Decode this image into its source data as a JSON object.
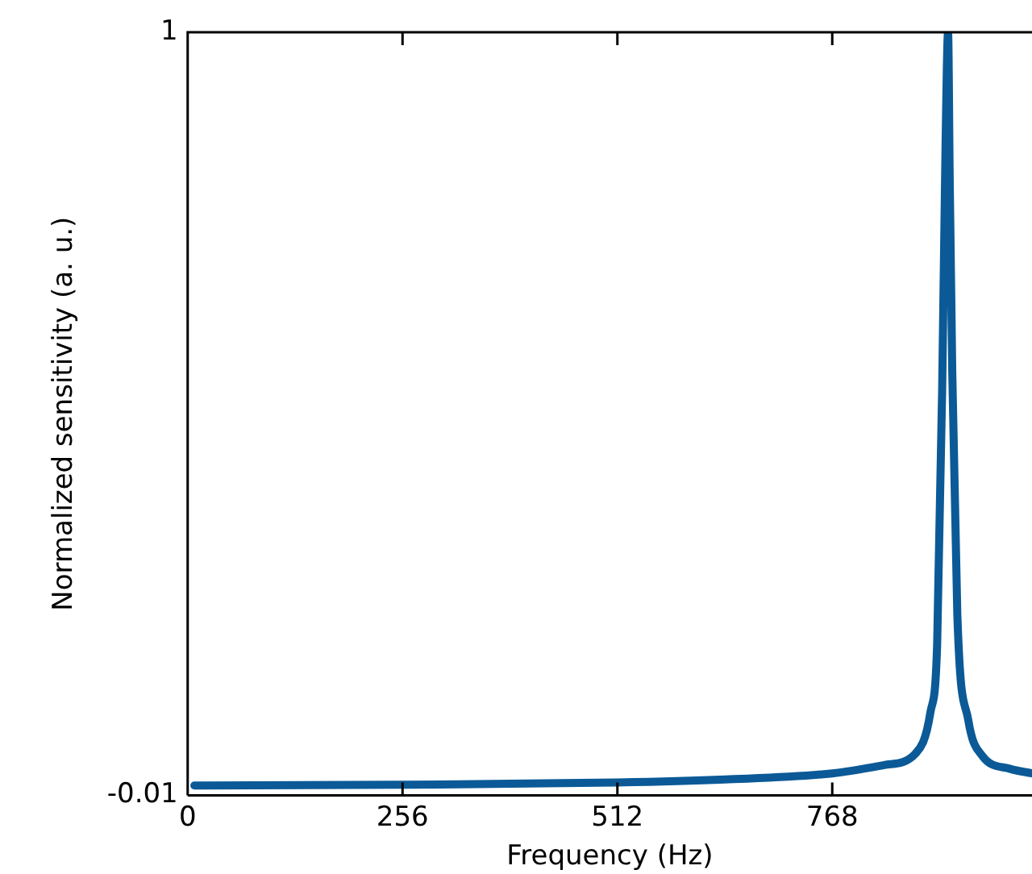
{
  "chart_data": {
    "type": "line",
    "xlabel": "Frequency (Hz)",
    "ylabel": "Normalized sensitivity (a. u.)",
    "x": [
      8,
      256,
      512,
      640,
      768,
      830,
      867,
      885,
      893,
      899,
      903,
      906,
      908,
      911,
      917,
      930,
      947,
      980,
      1006
    ],
    "series": [
      {
        "color": "#0b5a97",
        "values": [
          0.003,
          0.004,
          0.007,
          0.011,
          0.019,
          0.03,
          0.045,
          0.1,
          0.19,
          0.53,
          0.85,
          1,
          0.8,
          0.55,
          0.23,
          0.09,
          0.042,
          0.025,
          0.019
        ]
      }
    ],
    "xlim": [
      0,
      1006
    ],
    "xticks": [
      0,
      256,
      512,
      768
    ],
    "ylim": [
      -0.01,
      1
    ],
    "yticks": [
      -0.01,
      1
    ],
    "grid": false,
    "legend": false,
    "marker": "none",
    "line_style": "solid"
  }
}
